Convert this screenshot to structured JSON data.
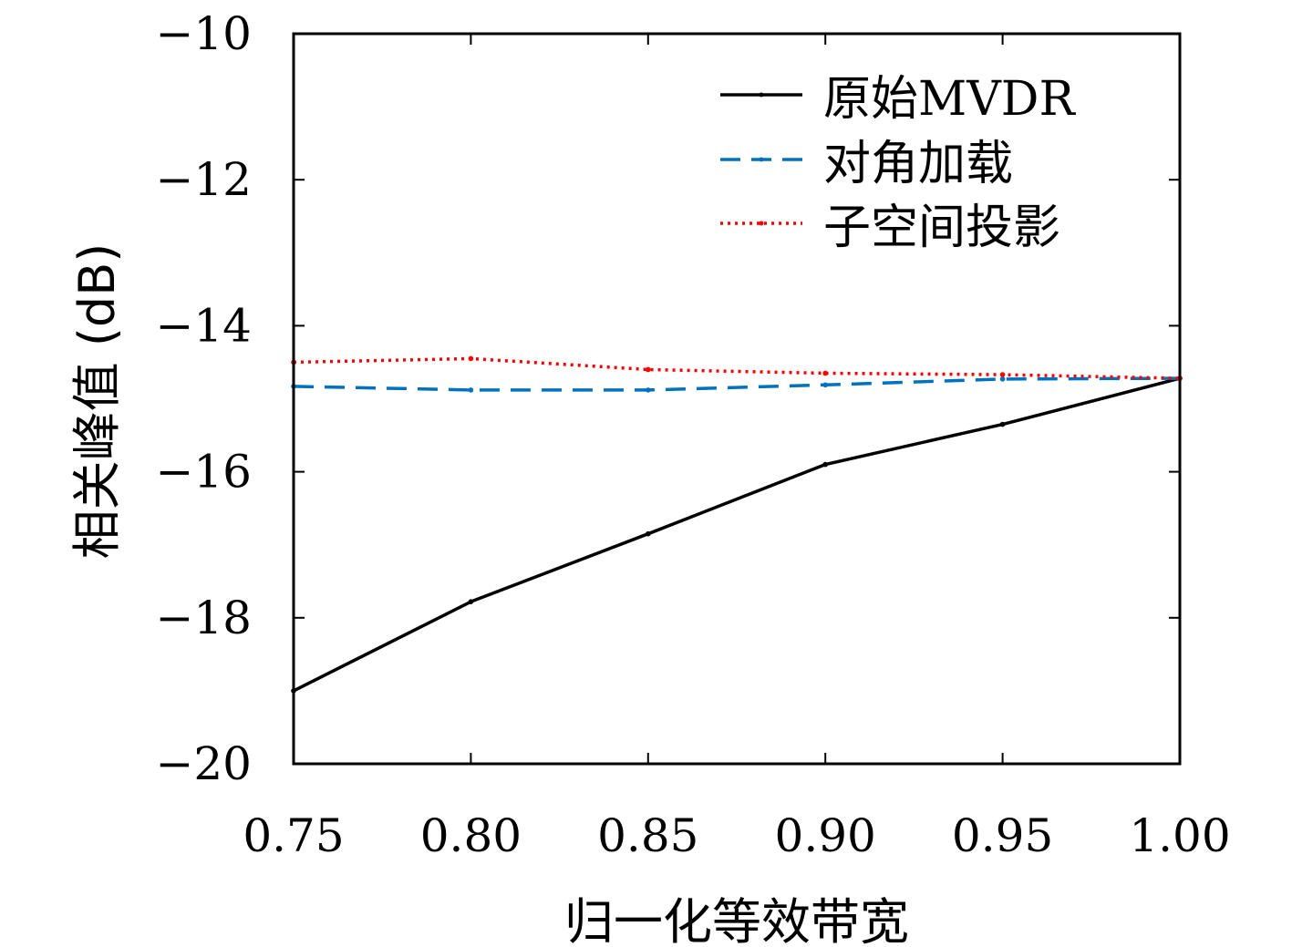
{
  "chart_data": {
    "type": "line",
    "title": "",
    "xlabel": "归一化等效带宽",
    "ylabel": "相关峰值 (dB)",
    "xlim": [
      0.75,
      1.0
    ],
    "ylim": [
      -20,
      -10
    ],
    "x_ticks": [
      "0.75",
      "0.80",
      "0.85",
      "0.90",
      "0.95",
      "1.00"
    ],
    "y_ticks": [
      "−10",
      "−12",
      "−14",
      "−16",
      "−18",
      "−20"
    ],
    "x": [
      0.75,
      0.8,
      0.85,
      0.9,
      0.95,
      1.0
    ],
    "grid": false,
    "legend_position": "top-right",
    "series": [
      {
        "name": "原始MVDR",
        "values": [
          -19.0,
          -17.78,
          -16.85,
          -15.9,
          -15.35,
          -14.72
        ],
        "color": "#000000",
        "style": "solid"
      },
      {
        "name": "对角加载",
        "values": [
          -14.83,
          -14.88,
          -14.88,
          -14.81,
          -14.73,
          -14.72
        ],
        "color": "#0072BD",
        "style": "dashed"
      },
      {
        "name": "子空间投影",
        "values": [
          -14.5,
          -14.45,
          -14.6,
          -14.65,
          -14.67,
          -14.72
        ],
        "color": "#FF0000",
        "style": "dotted"
      }
    ]
  }
}
